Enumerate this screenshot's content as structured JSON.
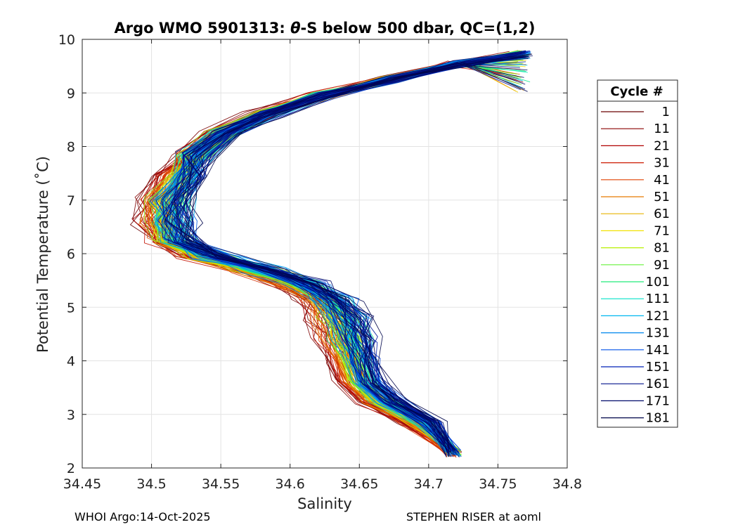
{
  "chart_data": {
    "type": "line",
    "title_parts": {
      "prefix": "Argo WMO 5901313: ",
      "theta": "θ",
      "suffix": "-S below 500 dbar,  QC=(1,2)"
    },
    "xlabel": "Salinity",
    "ylabel": "Potential Temperature (˚C)",
    "xlim": [
      34.45,
      34.8
    ],
    "ylim": [
      2,
      10
    ],
    "xticks": [
      "34.45",
      "34.5",
      "34.55",
      "34.6",
      "34.65",
      "34.7",
      "34.75",
      "34.8"
    ],
    "yticks": [
      "2",
      "3",
      "4",
      "5",
      "6",
      "7",
      "8",
      "9",
      "10"
    ],
    "grid": true,
    "legend": {
      "title": "Cycle #",
      "position": "right-outside",
      "entries": [
        {
          "label": "1",
          "color": "#6b0000"
        },
        {
          "label": "11",
          "color": "#8a0000"
        },
        {
          "label": "21",
          "color": "#b00000"
        },
        {
          "label": "31",
          "color": "#cc1a00"
        },
        {
          "label": "41",
          "color": "#e04000"
        },
        {
          "label": "51",
          "color": "#e87a00"
        },
        {
          "label": "61",
          "color": "#e8b400"
        },
        {
          "label": "71",
          "color": "#f2e200"
        },
        {
          "label": "81",
          "color": "#b8f000"
        },
        {
          "label": "91",
          "color": "#66f23a"
        },
        {
          "label": "101",
          "color": "#20ec7a"
        },
        {
          "label": "111",
          "color": "#00e0c8"
        },
        {
          "label": "121",
          "color": "#00b8f0"
        },
        {
          "label": "131",
          "color": "#0088ee"
        },
        {
          "label": "141",
          "color": "#0050e8"
        },
        {
          "label": "151",
          "color": "#0020b8"
        },
        {
          "label": "161",
          "color": "#00108c"
        },
        {
          "label": "171",
          "color": "#000a6a"
        },
        {
          "label": "181",
          "color": "#00054a"
        }
      ]
    },
    "profile_shape": {
      "description": "typical theta-S curve shape shared by all cycles",
      "points": [
        [
          34.765,
          9.8
        ],
        [
          34.72,
          9.55
        ],
        [
          34.67,
          9.25
        ],
        [
          34.62,
          8.95
        ],
        [
          34.58,
          8.6
        ],
        [
          34.55,
          8.25
        ],
        [
          34.53,
          7.85
        ],
        [
          34.515,
          7.45
        ],
        [
          34.505,
          7.0
        ],
        [
          34.505,
          6.6
        ],
        [
          34.51,
          6.25
        ],
        [
          34.535,
          5.95
        ],
        [
          34.57,
          5.7
        ],
        [
          34.6,
          5.45
        ],
        [
          34.62,
          5.15
        ],
        [
          34.63,
          4.8
        ],
        [
          34.635,
          4.4
        ],
        [
          34.64,
          4.0
        ],
        [
          34.645,
          3.6
        ],
        [
          34.66,
          3.25
        ],
        [
          34.69,
          2.85
        ],
        [
          34.72,
          2.3
        ]
      ],
      "salinity_spread_by_cycle": [
        -0.012,
        0.022
      ],
      "deep_end_temperature_range": [
        2.2,
        2.35
      ]
    }
  },
  "footer": {
    "left": "WHOI Argo:14-Oct-2025",
    "right": "STEPHEN RISER at aoml"
  }
}
